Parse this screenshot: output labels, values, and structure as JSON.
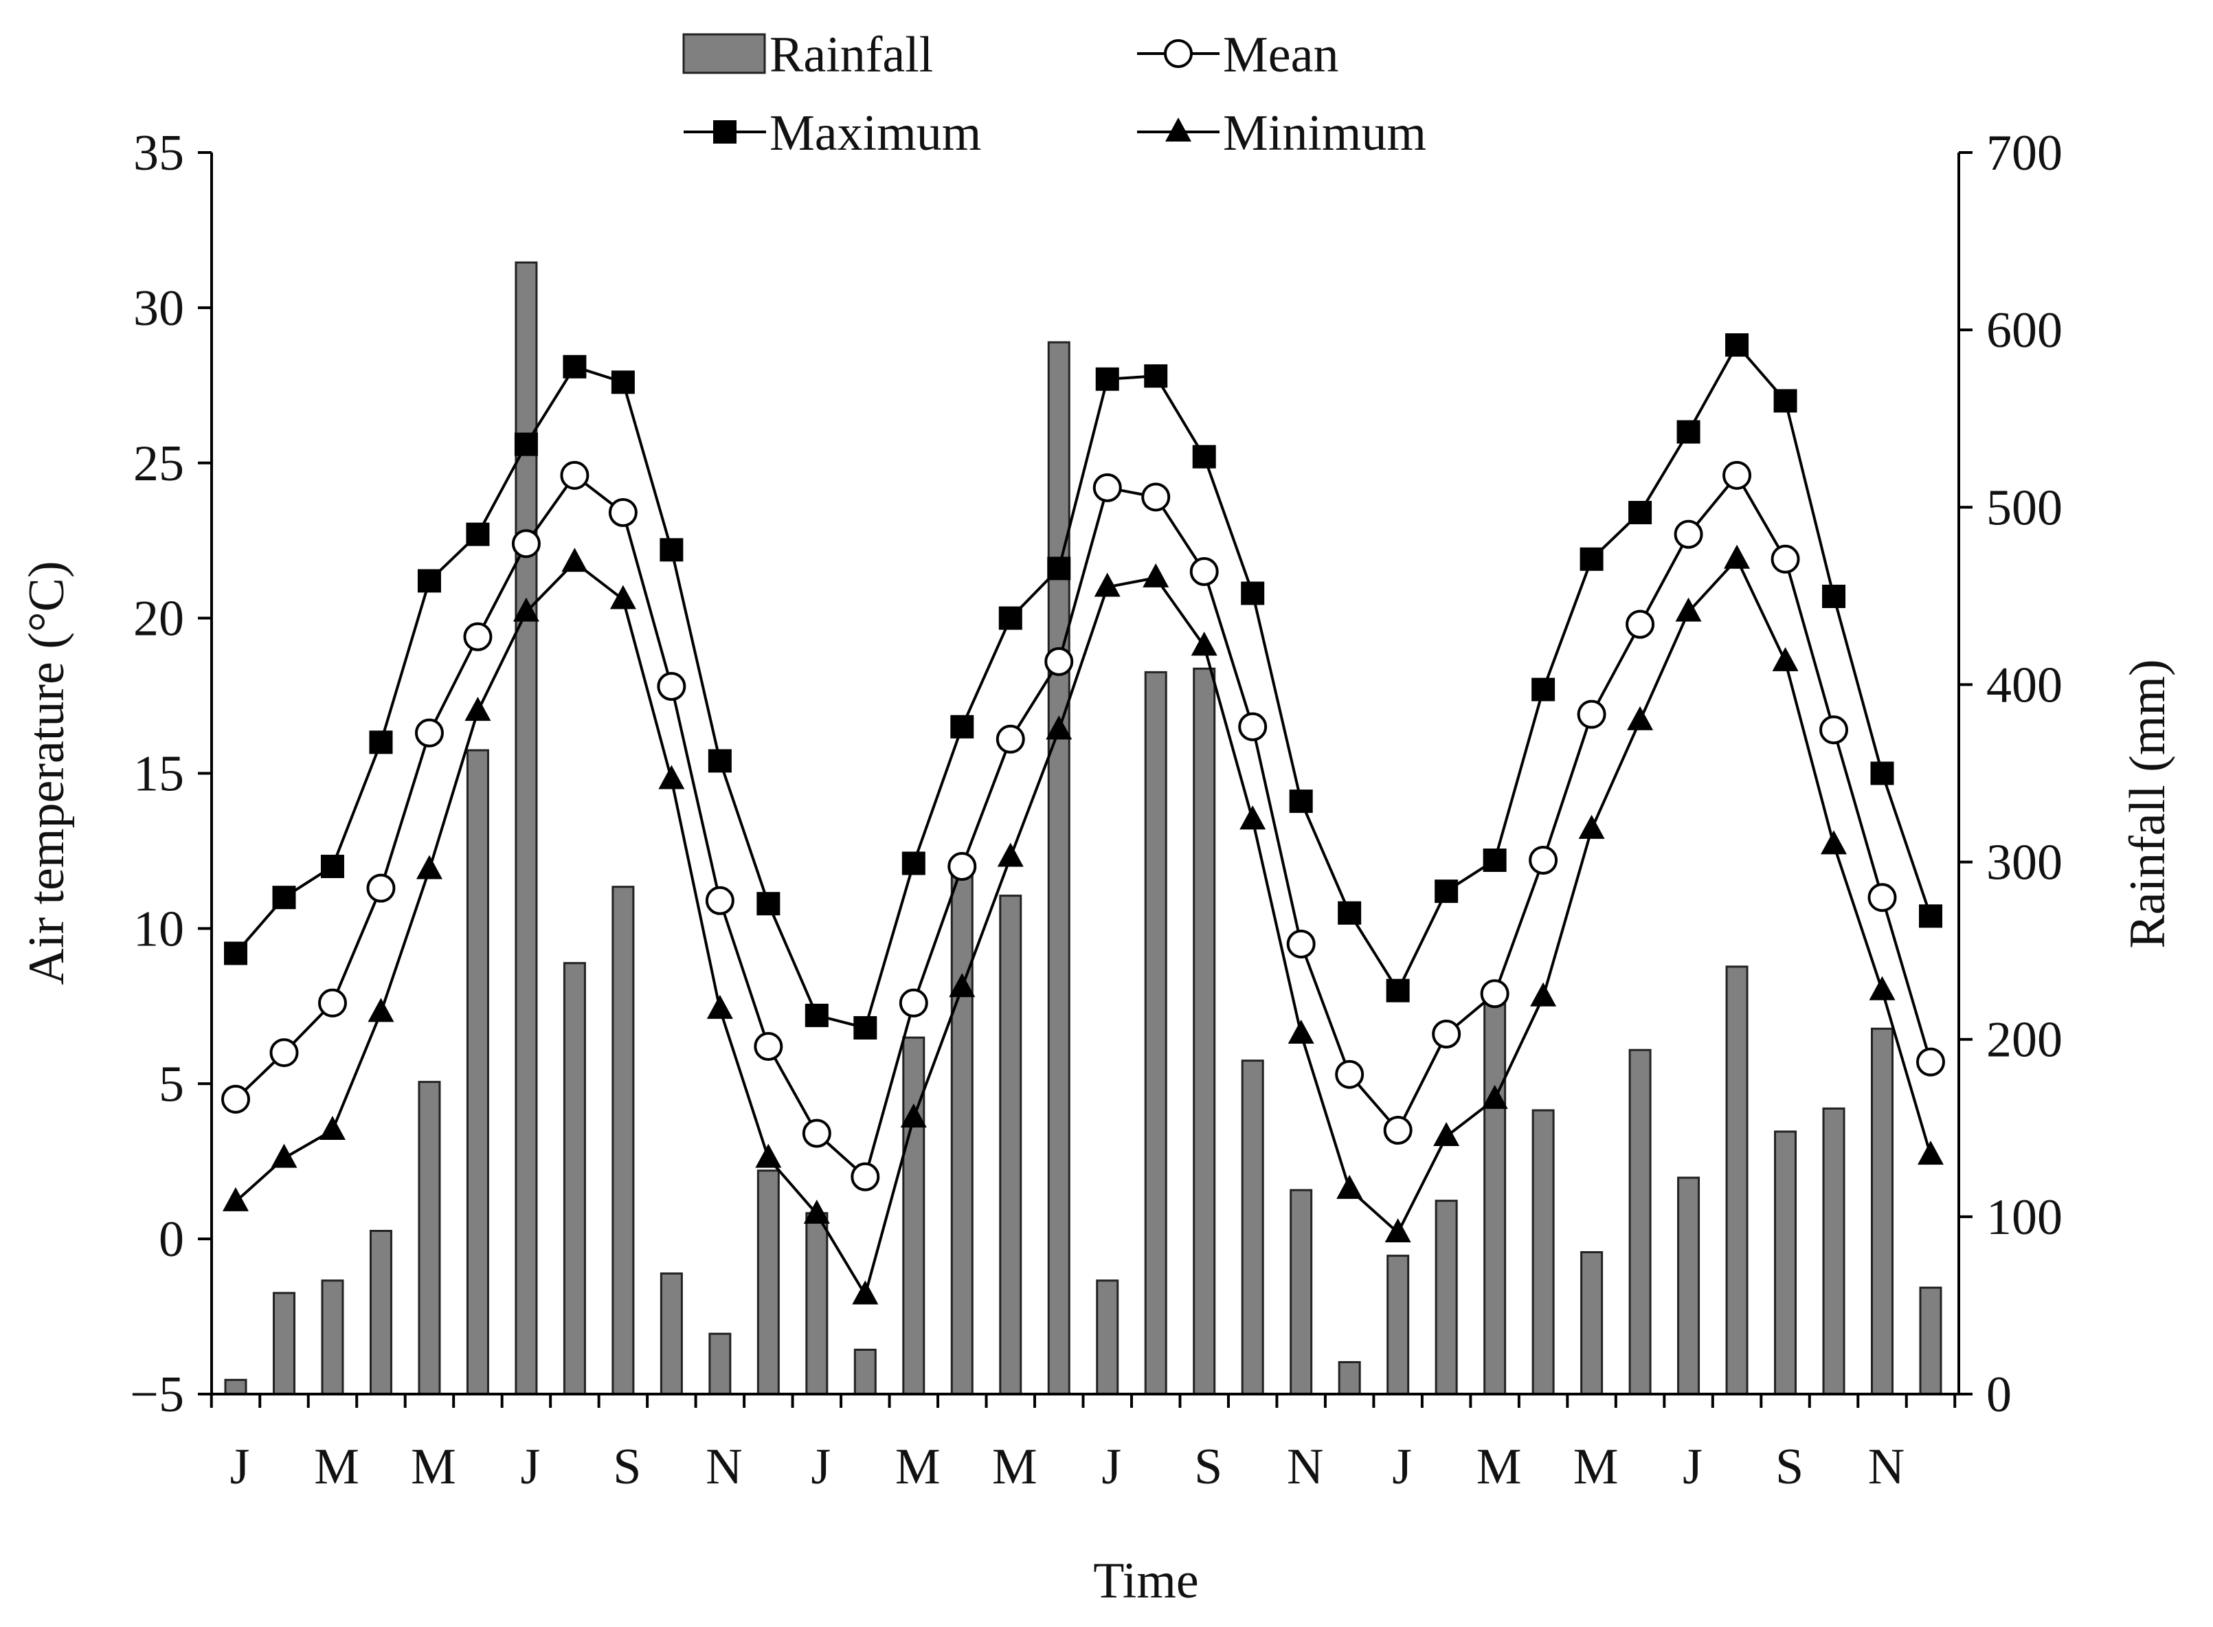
{
  "chart_data": {
    "type": "bar+line",
    "xlabel": "Time",
    "ylabel": "Air temperature (°C)",
    "y2label": "Rainfall (mm)",
    "ylim": [
      -5,
      35
    ],
    "y2lim": [
      0,
      700
    ],
    "yticks": [
      -5,
      0,
      5,
      10,
      15,
      20,
      25,
      30,
      35
    ],
    "y2ticks": [
      0,
      100,
      200,
      300,
      400,
      500,
      600,
      700
    ],
    "xtick_labels": [
      "J",
      "M",
      "M",
      "J",
      "S",
      "N",
      "J",
      "M",
      "M",
      "J",
      "S",
      "N",
      "J",
      "M",
      "M",
      "J",
      "S",
      "N"
    ],
    "months": 36,
    "legend": [
      "Rainfall",
      "Mean",
      "Maximum",
      "Minimum"
    ],
    "legend_position": "top",
    "grid": false,
    "series": [
      {
        "name": "Rainfall",
        "type": "bar",
        "axis": "right",
        "values": [
          8,
          57,
          64,
          92,
          176,
          363,
          638,
          243,
          286,
          68,
          34,
          126,
          102,
          25,
          201,
          293,
          281,
          593,
          64,
          407,
          409,
          188,
          115,
          18,
          78,
          109,
          228,
          160,
          80,
          194,
          122,
          241,
          148,
          161,
          206,
          60
        ]
      },
      {
        "name": "Maximum",
        "type": "line",
        "marker": "square",
        "values": [
          9.2,
          11.0,
          12.0,
          16.0,
          21.2,
          22.7,
          25.6,
          28.1,
          27.6,
          22.2,
          15.4,
          10.8,
          7.2,
          6.8,
          12.1,
          16.5,
          20.0,
          21.6,
          27.7,
          27.8,
          25.2,
          20.8,
          14.1,
          10.5,
          8.0,
          11.2,
          12.2,
          17.7,
          21.9,
          23.4,
          26.0,
          28.8,
          27.0,
          20.7,
          15.0,
          10.4
        ]
      },
      {
        "name": "Mean",
        "type": "line",
        "marker": "open-circle",
        "values": [
          4.5,
          6.0,
          7.6,
          11.3,
          16.3,
          19.4,
          22.4,
          24.6,
          23.4,
          17.8,
          10.9,
          6.2,
          3.4,
          2.0,
          7.6,
          12.0,
          16.1,
          18.6,
          24.2,
          23.9,
          21.5,
          16.5,
          9.5,
          5.3,
          3.5,
          6.6,
          7.9,
          12.2,
          16.9,
          19.8,
          22.7,
          24.6,
          21.9,
          16.4,
          11.0,
          5.7
        ]
      },
      {
        "name": "Minimum",
        "type": "line",
        "marker": "triangle",
        "values": [
          1.2,
          2.6,
          3.5,
          7.3,
          11.9,
          17.0,
          20.2,
          21.8,
          20.6,
          14.8,
          7.4,
          2.6,
          0.8,
          -1.8,
          3.9,
          8.1,
          12.3,
          16.4,
          21.0,
          21.3,
          19.1,
          13.5,
          6.6,
          1.6,
          0.2,
          3.3,
          4.5,
          7.8,
          13.2,
          16.7,
          20.2,
          21.9,
          18.6,
          12.7,
          8.0,
          2.7
        ]
      }
    ],
    "colors": {
      "bar": "#808080",
      "line": "#000000"
    }
  }
}
